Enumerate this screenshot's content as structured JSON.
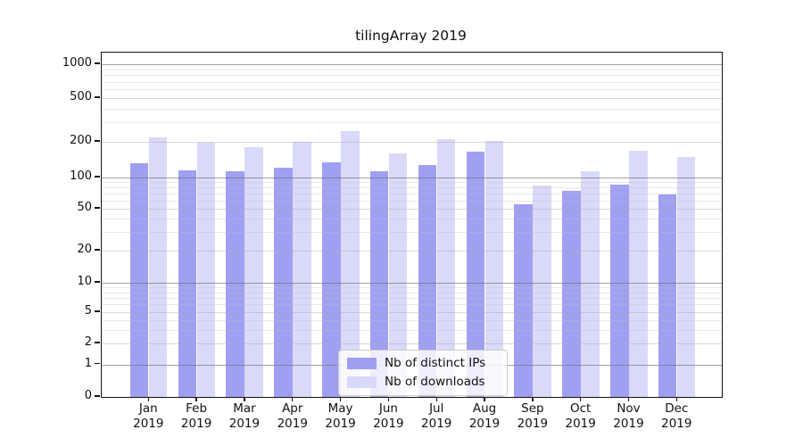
{
  "chart_data": {
    "type": "bar",
    "title": "tilingArray 2019",
    "year_label": "2019",
    "categories": [
      "Jan",
      "Feb",
      "Mar",
      "Apr",
      "May",
      "Jun",
      "Jul",
      "Aug",
      "Sep",
      "Oct",
      "Nov",
      "Dec"
    ],
    "series": [
      {
        "name": "Nb of distinct IPs",
        "color": "#a0a0f2",
        "values": [
          132,
          115,
          113,
          120,
          134,
          113,
          128,
          164,
          55,
          75,
          85,
          68
        ]
      },
      {
        "name": "Nb of downloads",
        "color": "#d9d9f9",
        "values": [
          218,
          197,
          180,
          199,
          250,
          160,
          211,
          203,
          84,
          113,
          167,
          148
        ]
      }
    ],
    "y_scale": "symlog",
    "y_ticks": [
      0,
      1,
      2,
      5,
      10,
      20,
      50,
      100,
      200,
      500,
      1000
    ],
    "ylim": [
      0,
      1280
    ],
    "xlabel": "",
    "ylabel": "",
    "grid": true,
    "legend_position": "lower center"
  }
}
